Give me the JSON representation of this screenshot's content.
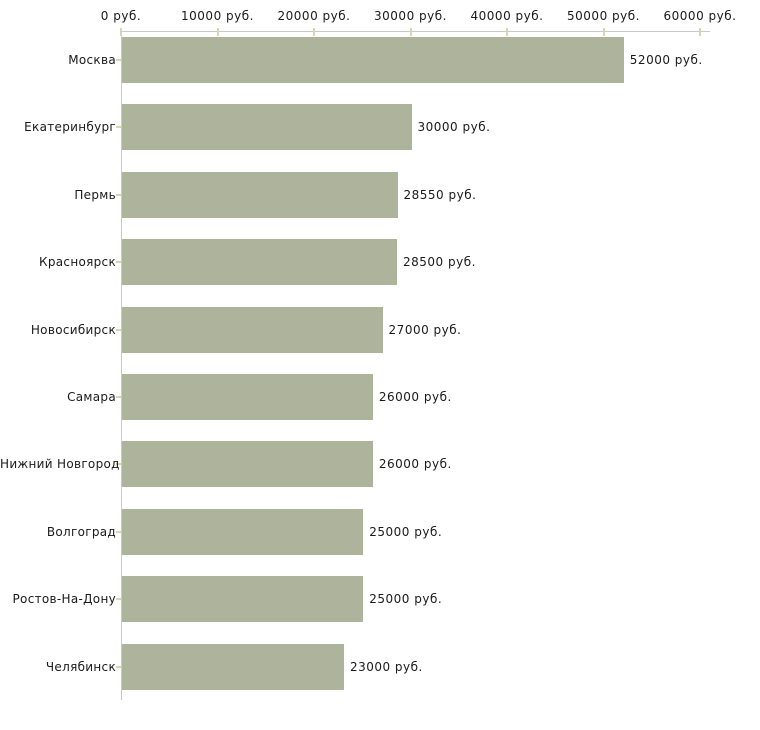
{
  "chart_data": {
    "type": "bar",
    "orientation": "horizontal",
    "title": "",
    "xlabel": "",
    "ylabel": "",
    "categories": [
      "Москва",
      "Екатеринбург",
      "Пермь",
      "Красноярск",
      "Новосибирск",
      "Самара",
      "Нижний Новгород",
      "Волгоград",
      "Ростов-На-Дону",
      "Челябинск"
    ],
    "values": [
      52000,
      30000,
      28550,
      28500,
      27000,
      26000,
      26000,
      25000,
      25000,
      23000
    ],
    "value_labels": [
      "52000 руб.",
      "30000 руб.",
      "28550 руб.",
      "28500 руб.",
      "27000 руб.",
      "26000 руб.",
      "26000 руб.",
      "25000 руб.",
      "25000 руб.",
      "23000 руб."
    ],
    "x_ticks": [
      0,
      10000,
      20000,
      30000,
      40000,
      50000,
      60000
    ],
    "x_tick_labels": [
      "0 руб.",
      "10000 руб.",
      "20000 руб.",
      "30000 руб.",
      "40000 руб.",
      "50000 руб.",
      "60000 руб."
    ],
    "xlim": [
      0,
      60000
    ],
    "grid": false,
    "legend": null,
    "colors": {
      "bar": "#aeb39b",
      "axis": "#c9c9c9",
      "tick": "#d6d6b0",
      "text": "#1a1a1a",
      "background": "#ffffff"
    }
  }
}
